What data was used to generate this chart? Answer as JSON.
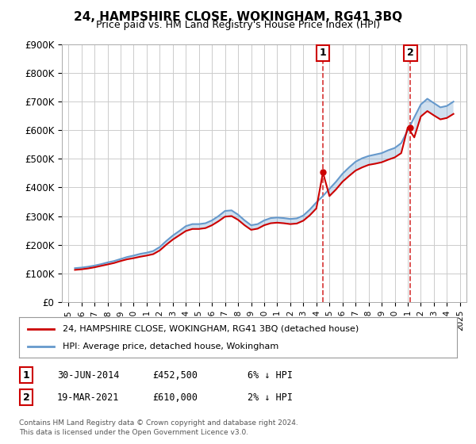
{
  "title": "24, HAMPSHIRE CLOSE, WOKINGHAM, RG41 3BQ",
  "subtitle": "Price paid vs. HM Land Registry's House Price Index (HPI)",
  "xlabel": "",
  "ylabel": "",
  "ylim": [
    0,
    900000
  ],
  "ytick_labels": [
    "£0",
    "£100K",
    "£200K",
    "£300K",
    "£400K",
    "£500K",
    "£600K",
    "£700K",
    "£800K",
    "£900K"
  ],
  "ytick_values": [
    0,
    100000,
    200000,
    300000,
    400000,
    500000,
    600000,
    700000,
    800000,
    900000
  ],
  "hpi_color": "#6699cc",
  "price_color": "#cc0000",
  "vline_color": "#cc0000",
  "transaction1_date": 2014.5,
  "transaction1_price": 452500,
  "transaction1_label": "1",
  "transaction2_date": 2021.21,
  "transaction2_price": 610000,
  "transaction2_label": "2",
  "legend_line1": "24, HAMPSHIRE CLOSE, WOKINGHAM, RG41 3BQ (detached house)",
  "legend_line2": "HPI: Average price, detached house, Wokingham",
  "footnote_line1": "Contains HM Land Registry data © Crown copyright and database right 2024.",
  "footnote_line2": "This data is licensed under the Open Government Licence v3.0.",
  "table_row1": [
    "1",
    "30-JUN-2014",
    "£452,500",
    "6% ↓ HPI"
  ],
  "table_row2": [
    "2",
    "19-MAR-2021",
    "£610,000",
    "2% ↓ HPI"
  ],
  "hpi_years": [
    1995.5,
    1996.0,
    1996.5,
    1997.0,
    1997.5,
    1998.0,
    1998.5,
    1999.0,
    1999.5,
    2000.0,
    2000.5,
    2001.0,
    2001.5,
    2002.0,
    2002.5,
    2003.0,
    2003.5,
    2004.0,
    2004.5,
    2005.0,
    2005.5,
    2006.0,
    2006.5,
    2007.0,
    2007.5,
    2008.0,
    2008.5,
    2009.0,
    2009.5,
    2010.0,
    2010.5,
    2011.0,
    2011.5,
    2012.0,
    2012.5,
    2013.0,
    2013.5,
    2014.0,
    2014.5,
    2015.0,
    2015.5,
    2016.0,
    2016.5,
    2017.0,
    2017.5,
    2018.0,
    2018.5,
    2019.0,
    2019.5,
    2020.0,
    2020.5,
    2021.0,
    2021.5,
    2022.0,
    2022.5,
    2023.0,
    2023.5,
    2024.0,
    2024.5
  ],
  "hpi_values": [
    118000,
    120000,
    123000,
    127000,
    132000,
    138000,
    143000,
    150000,
    157000,
    162000,
    168000,
    172000,
    178000,
    192000,
    213000,
    232000,
    248000,
    265000,
    272000,
    272000,
    275000,
    285000,
    300000,
    318000,
    320000,
    305000,
    285000,
    268000,
    272000,
    285000,
    293000,
    295000,
    293000,
    290000,
    292000,
    302000,
    323000,
    348000,
    370000,
    395000,
    420000,
    448000,
    470000,
    490000,
    502000,
    510000,
    515000,
    520000,
    530000,
    538000,
    555000,
    600000,
    645000,
    690000,
    710000,
    695000,
    680000,
    685000,
    700000
  ],
  "price_years": [
    1995.5,
    1996.0,
    1996.5,
    1997.0,
    1997.5,
    1998.0,
    1998.5,
    1999.0,
    1999.5,
    2000.0,
    2000.5,
    2001.0,
    2001.5,
    2002.0,
    2002.5,
    2003.0,
    2003.5,
    2004.0,
    2004.5,
    2005.0,
    2005.5,
    2006.0,
    2006.5,
    2007.0,
    2007.5,
    2008.0,
    2008.5,
    2009.0,
    2009.5,
    2010.0,
    2010.5,
    2011.0,
    2011.5,
    2012.0,
    2012.5,
    2013.0,
    2013.5,
    2014.0,
    2014.5,
    2015.0,
    2015.5,
    2016.0,
    2016.5,
    2017.0,
    2017.5,
    2018.0,
    2018.5,
    2019.0,
    2019.5,
    2020.0,
    2020.5,
    2021.0,
    2021.5,
    2022.0,
    2022.5,
    2023.0,
    2023.5,
    2024.0,
    2024.5
  ],
  "price_values": [
    112000,
    114000,
    117000,
    121000,
    126000,
    131000,
    136000,
    143000,
    149000,
    153000,
    158000,
    162000,
    167000,
    180000,
    200000,
    218000,
    233000,
    248000,
    255000,
    255000,
    258000,
    268000,
    282000,
    298000,
    300000,
    287000,
    268000,
    252000,
    256000,
    268000,
    275000,
    277000,
    275000,
    272000,
    274000,
    284000,
    303000,
    327000,
    452500,
    370000,
    393000,
    420000,
    440000,
    459000,
    470000,
    479000,
    483000,
    488000,
    497000,
    505000,
    520000,
    610000,
    575000,
    648000,
    667000,
    652000,
    638000,
    643000,
    657000
  ],
  "background_color": "#ffffff",
  "plot_bg_color": "#ffffff",
  "grid_color": "#cccccc",
  "xmin": 1994.5,
  "xmax": 2025.5,
  "xtick_years": [
    1995,
    1996,
    1997,
    1998,
    1999,
    2000,
    2001,
    2002,
    2003,
    2004,
    2005,
    2006,
    2007,
    2008,
    2009,
    2010,
    2011,
    2012,
    2013,
    2014,
    2015,
    2016,
    2017,
    2018,
    2019,
    2020,
    2021,
    2022,
    2023,
    2024,
    2025
  ]
}
